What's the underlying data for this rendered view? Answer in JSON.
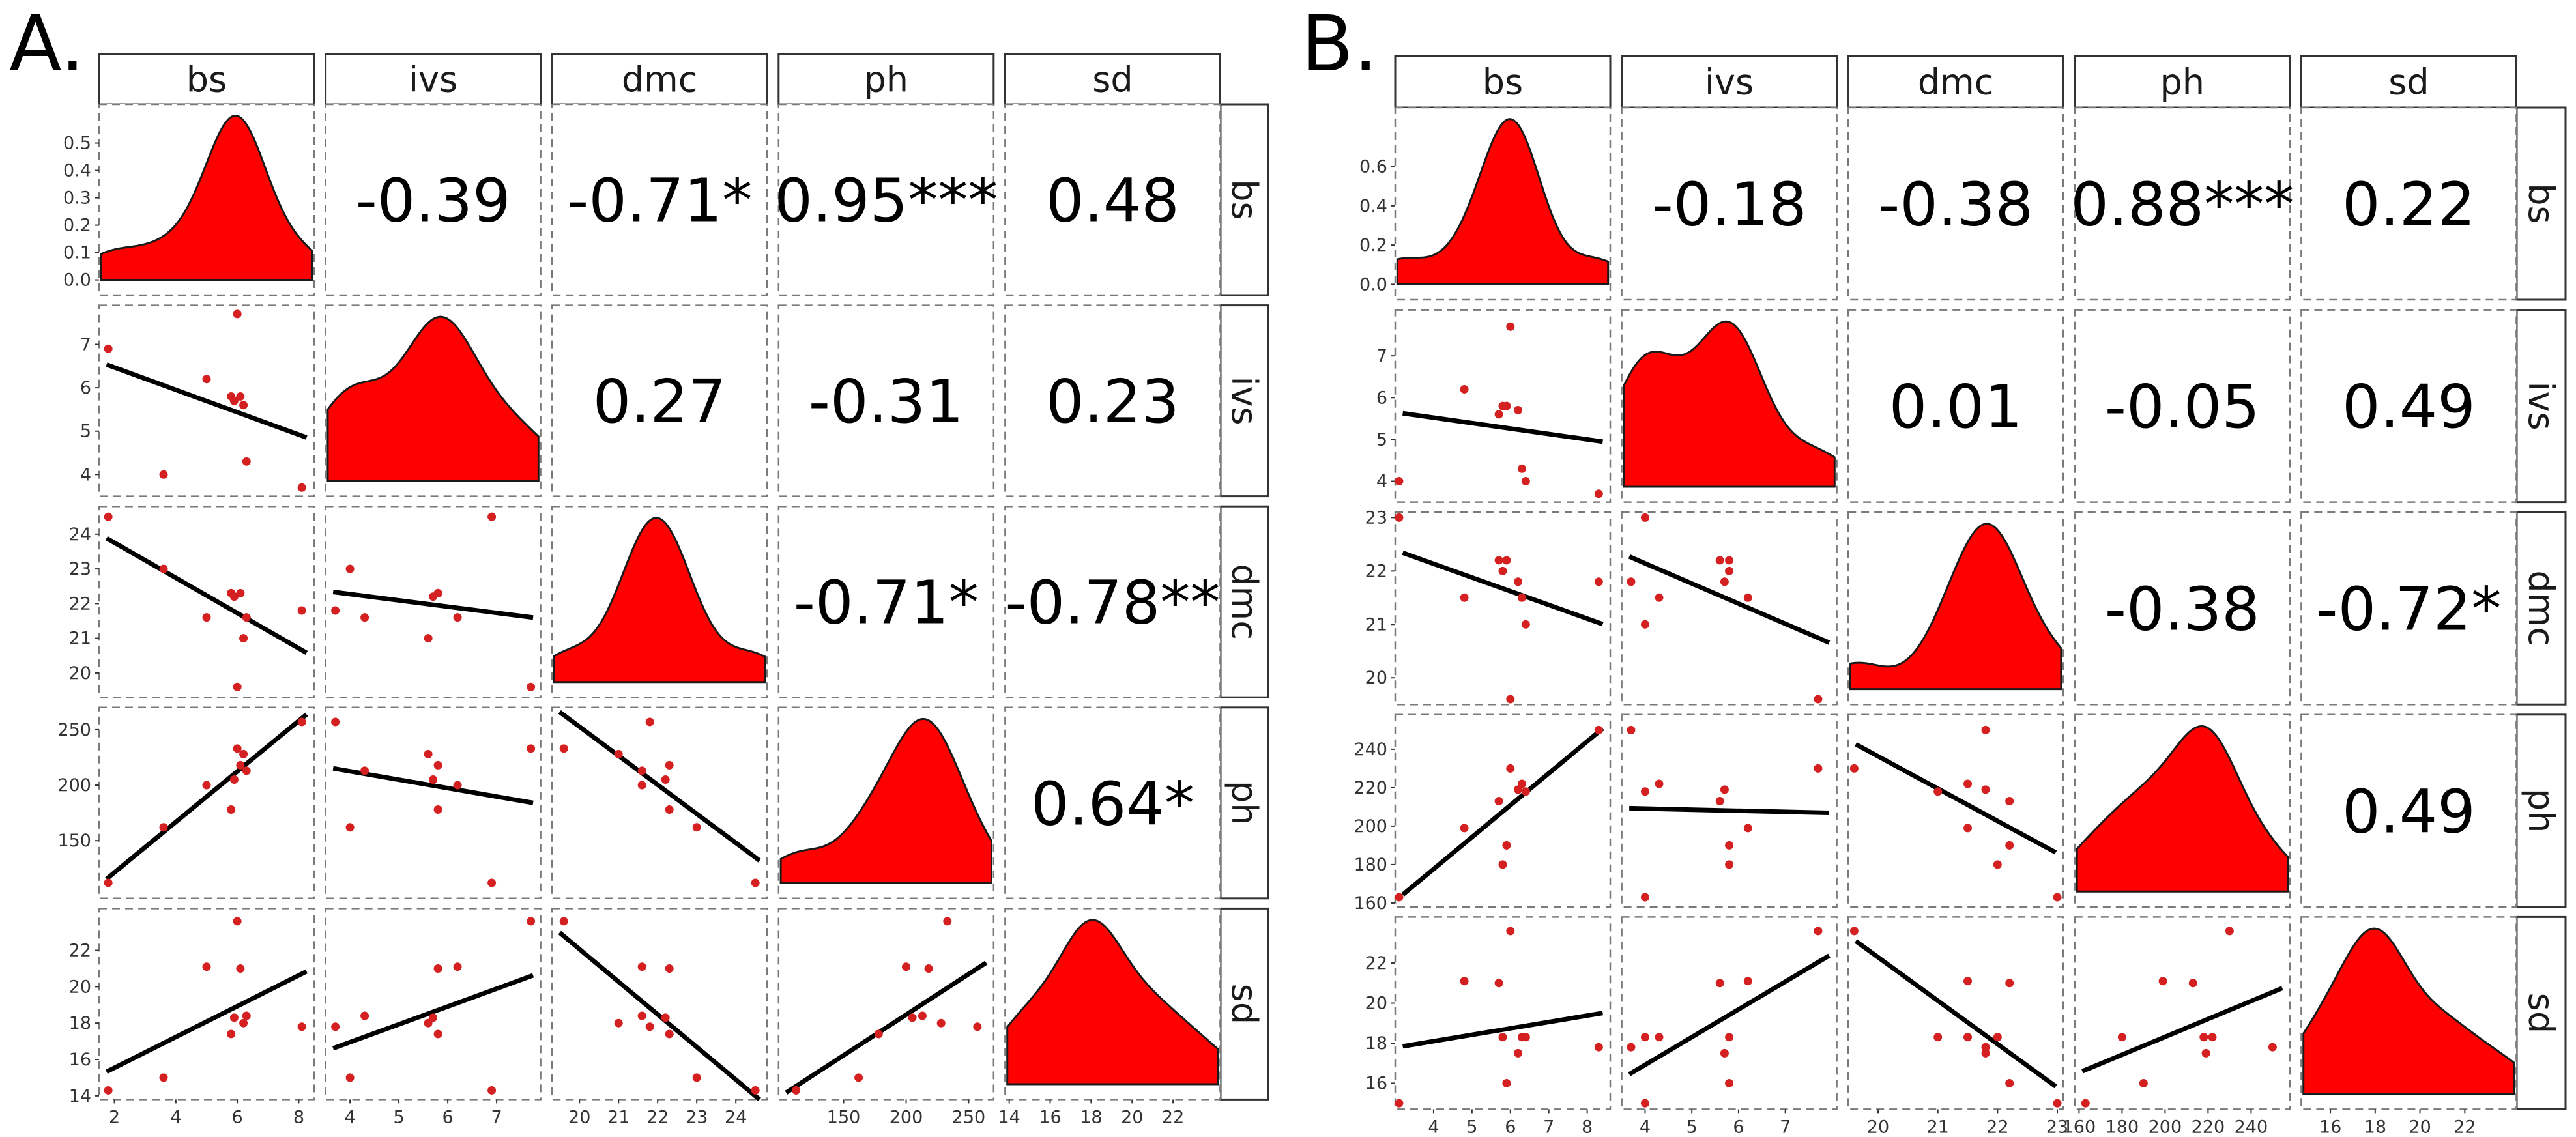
{
  "colors": {
    "fill": "#ff0000",
    "point": "#d42020",
    "line": "#000000"
  },
  "chart_data": [
    {
      "type": "scatter",
      "panel": "A.",
      "variables": [
        "bs",
        "ivs",
        "dmc",
        "ph",
        "sd"
      ],
      "ranges": {
        "bs": [
          1.5,
          8.5
        ],
        "ivs": [
          3.5,
          7.9
        ],
        "dmc": [
          19.3,
          24.8
        ],
        "ph": [
          98,
          270
        ],
        "sd": [
          13.8,
          24.3
        ]
      },
      "ticks": {
        "bs": [
          "2",
          "4",
          "6",
          "8"
        ],
        "ivs": [
          "4",
          "5",
          "6",
          "7"
        ],
        "dmc": [
          "20",
          "21",
          "22",
          "23",
          "24"
        ],
        "ph": [
          "150",
          "200",
          "250"
        ],
        "sd": [
          "14",
          "16",
          "18",
          "20",
          "22"
        ]
      },
      "density_ticks": [
        "0.0",
        "0.1",
        "0.2",
        "0.3",
        "0.4",
        "0.5"
      ],
      "density_ylim": [
        0,
        0.57
      ],
      "correlations": {
        "bs-ivs": "-0.39",
        "bs-dmc": "-0.71*",
        "bs-ph": "0.95***",
        "bs-sd": "0.48",
        "ivs-dmc": "0.27",
        "ivs-ph": "-0.31",
        "ivs-sd": "0.23",
        "dmc-ph": "-0.71*",
        "dmc-sd": "-0.78**",
        "ph-sd": "0.64*"
      },
      "points": {
        "bs": [
          1.8,
          3.6,
          5.0,
          5.8,
          5.9,
          6.0,
          6.1,
          6.2,
          6.3,
          8.1
        ],
        "ivs": [
          6.9,
          4.0,
          6.2,
          5.8,
          5.7,
          7.7,
          5.8,
          5.6,
          4.3,
          3.7
        ],
        "dmc": [
          24.5,
          23.0,
          21.6,
          22.3,
          22.2,
          19.6,
          22.3,
          21.0,
          21.6,
          21.8
        ],
        "ph": [
          112,
          162,
          200,
          178,
          205,
          233,
          218,
          228,
          213,
          257
        ],
        "sd": [
          14.3,
          15.0,
          21.1,
          17.4,
          18.3,
          23.6,
          21.0,
          18.0,
          18.4,
          17.8
        ]
      }
    },
    {
      "type": "scatter",
      "panel": "B.",
      "variables": [
        "bs",
        "ivs",
        "dmc",
        "ph",
        "sd"
      ],
      "ranges": {
        "bs": [
          3.0,
          8.6
        ],
        "ivs": [
          3.5,
          8.1
        ],
        "dmc": [
          19.5,
          23.1
        ],
        "ph": [
          158,
          258
        ],
        "sd": [
          14.7,
          24.3
        ]
      },
      "ticks": {
        "bs": [
          "4",
          "5",
          "6",
          "7",
          "8"
        ],
        "ivs": [
          "4",
          "5",
          "6",
          "7"
        ],
        "dmc": [
          "20",
          "21",
          "22",
          "23"
        ],
        "ph": [
          "160",
          "180",
          "200",
          "220",
          "240"
        ],
        "sd": [
          "16",
          "18",
          "20",
          "22"
        ]
      },
      "density_ticks": [
        "0.0",
        "0.2",
        "0.4",
        "0.6"
      ],
      "density_ylim": [
        0,
        0.8
      ],
      "correlations": {
        "bs-ivs": "-0.18",
        "bs-dmc": "-0.38",
        "bs-ph": "0.88***",
        "bs-sd": "0.22",
        "ivs-dmc": "0.01",
        "ivs-ph": "-0.05",
        "ivs-sd": "0.49",
        "dmc-ph": "-0.38",
        "dmc-sd": "-0.72*",
        "ph-sd": "0.49"
      },
      "points": {
        "bs": [
          3.1,
          4.8,
          5.8,
          5.9,
          5.7,
          6.0,
          6.2,
          6.3,
          6.4,
          8.3
        ],
        "ivs": [
          4.0,
          6.2,
          5.8,
          5.8,
          5.6,
          7.7,
          5.7,
          4.3,
          4.0,
          3.7
        ],
        "dmc": [
          23.0,
          21.5,
          22.0,
          22.2,
          22.2,
          19.6,
          21.8,
          21.5,
          21.0,
          21.8
        ],
        "ph": [
          163,
          199,
          180,
          190,
          213,
          230,
          219,
          222,
          218,
          250
        ],
        "sd": [
          15.0,
          21.1,
          18.3,
          16.0,
          21.0,
          23.6,
          17.5,
          18.3,
          18.3,
          17.8
        ]
      }
    }
  ]
}
